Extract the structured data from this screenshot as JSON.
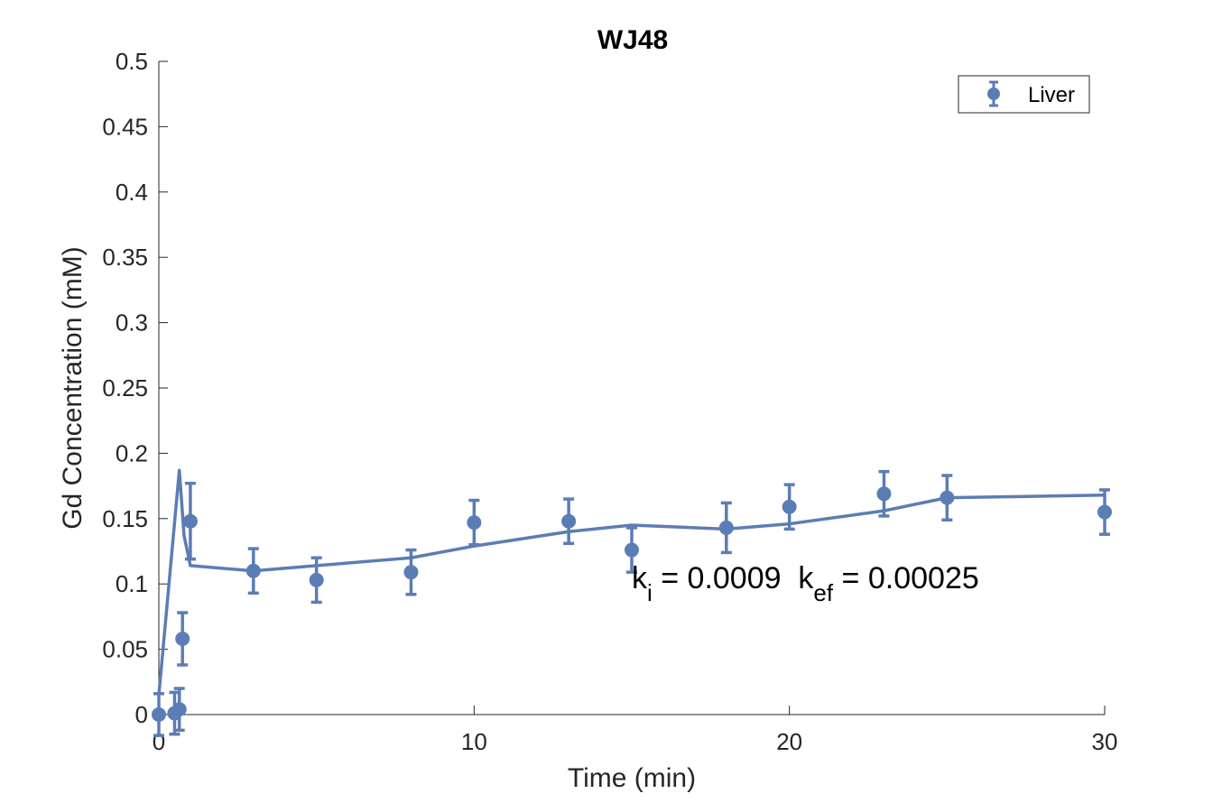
{
  "chart_data": {
    "type": "line",
    "title": "WJ48",
    "xlabel": "Time (min)",
    "ylabel": "Gd Concentration (mM)",
    "xlim": [
      0,
      30
    ],
    "ylim": [
      0,
      0.5
    ],
    "xticks": [
      0,
      10,
      20,
      30
    ],
    "xtick_labels": [
      "0",
      "10",
      "20",
      "30"
    ],
    "yticks": [
      0,
      0.05,
      0.1,
      0.15,
      0.2,
      0.25,
      0.3,
      0.35,
      0.4,
      0.45,
      0.5
    ],
    "ytick_labels": [
      "0",
      "0.05",
      "0.1",
      "0.15",
      "0.2",
      "0.25",
      "0.3",
      "0.35",
      "0.4",
      "0.45",
      "0.5"
    ],
    "grid": false,
    "legend_position": "top-right",
    "color": "#5B7DB5",
    "series": [
      {
        "name": "Liver",
        "kind": "errorbar",
        "points": [
          {
            "x": 0,
            "y": 0,
            "err": 0.016
          },
          {
            "x": 0.5,
            "y": 0.001,
            "err": 0.016
          },
          {
            "x": 0.65,
            "y": 0.004,
            "err": 0.016
          },
          {
            "x": 0.75,
            "y": 0.058,
            "err": 0.02
          },
          {
            "x": 1.0,
            "y": 0.148,
            "err": 0.029
          },
          {
            "x": 3,
            "y": 0.11,
            "err": 0.017
          },
          {
            "x": 5,
            "y": 0.103,
            "err": 0.017
          },
          {
            "x": 8,
            "y": 0.109,
            "err": 0.017
          },
          {
            "x": 10,
            "y": 0.147,
            "err": 0.017
          },
          {
            "x": 13,
            "y": 0.148,
            "err": 0.017
          },
          {
            "x": 15,
            "y": 0.126,
            "err": 0.017
          },
          {
            "x": 18,
            "y": 0.143,
            "err": 0.019
          },
          {
            "x": 20,
            "y": 0.159,
            "err": 0.017
          },
          {
            "x": 23,
            "y": 0.169,
            "err": 0.017
          },
          {
            "x": 25,
            "y": 0.166,
            "err": 0.017
          },
          {
            "x": 30,
            "y": 0.155,
            "err": 0.017
          }
        ]
      },
      {
        "kind": "line",
        "x": [
          0,
          0.65,
          0.8,
          1.0,
          3,
          5,
          8,
          10,
          13,
          15,
          18,
          20,
          23,
          25,
          30
        ],
        "y": [
          0.015,
          0.187,
          0.137,
          0.114,
          0.11,
          0.114,
          0.12,
          0.129,
          0.14,
          0.145,
          0.142,
          0.146,
          0.156,
          0.166,
          0.168
        ]
      }
    ],
    "annotation": {
      "k1": "k",
      "k1_sub": "i",
      "eq1": " = 0.0009  ",
      "k2": "k",
      "k2_sub": "ef",
      "eq2": " = 0.00025",
      "x": 15,
      "y": 0.1
    }
  }
}
